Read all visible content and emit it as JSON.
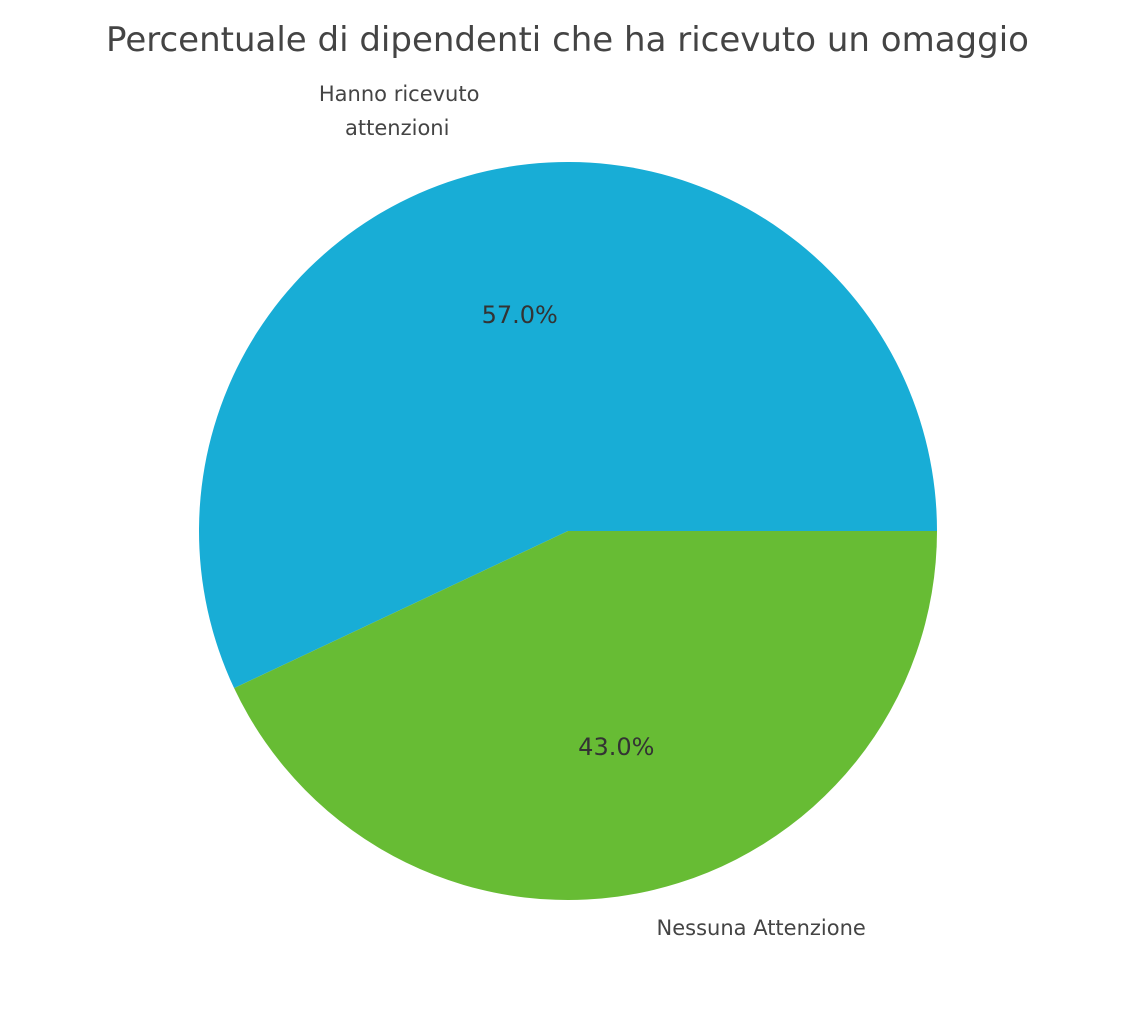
{
  "chart_data": {
    "type": "pie",
    "title": "Percentuale di dipendenti che ha ricevuto un omaggio",
    "categories": [
      "Hanno ricevuto\nattenzioni",
      "Nessuna Attenzione"
    ],
    "values": [
      57.0,
      43.0
    ],
    "value_labels": [
      "57.0%",
      "43.0%"
    ],
    "colors": [
      "#18ADD6",
      "#67BC34"
    ],
    "start_angle_deg": 0,
    "direction": "counterclockwise"
  }
}
